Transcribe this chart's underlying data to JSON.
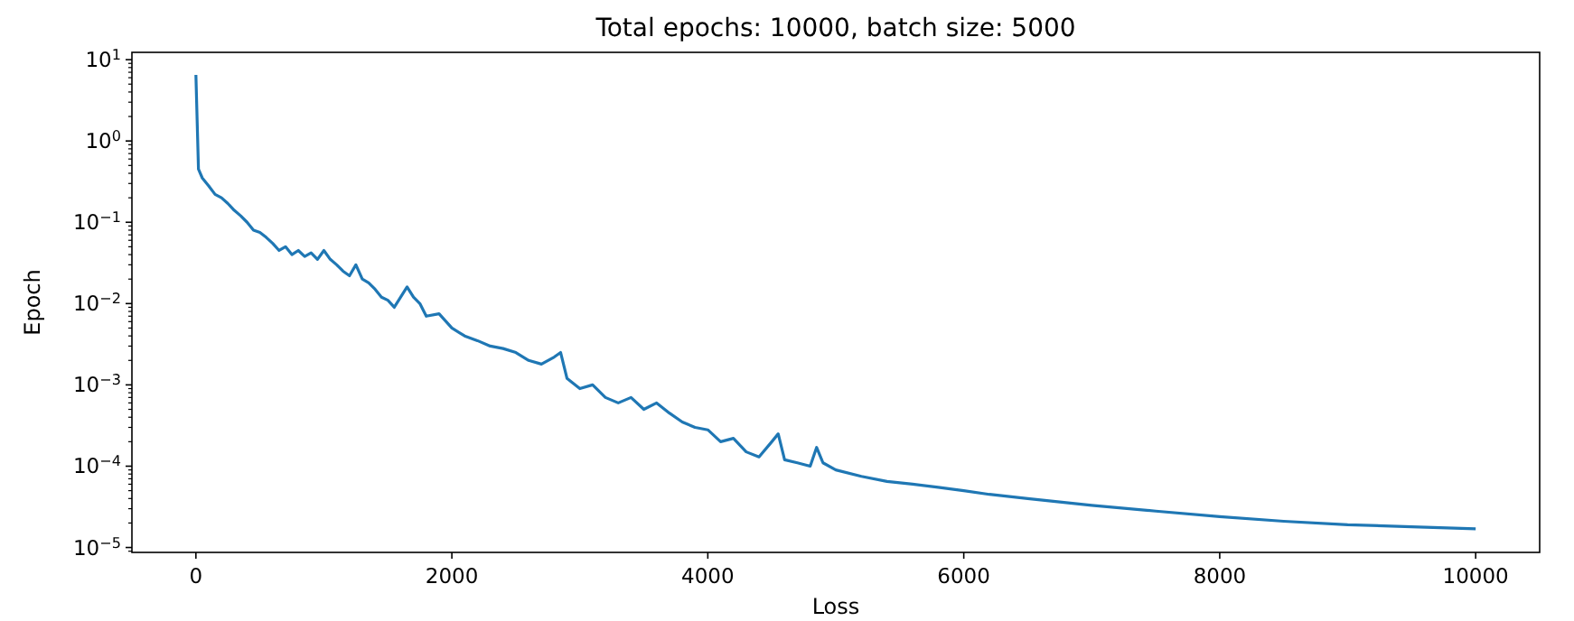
{
  "chart_data": {
    "type": "line",
    "title": "Total epochs: 10000, batch size: 5000",
    "xlabel": "Loss",
    "ylabel": "Epoch",
    "log": "y",
    "grid": false,
    "marker": "none",
    "line_style": "solid",
    "xlim": [
      -500,
      10500
    ],
    "xticks": [
      0,
      2000,
      4000,
      6000,
      8000,
      10000
    ],
    "ylim": [
      8.7e-06,
      12.3
    ],
    "yticks": [
      {
        "value": 1e-05,
        "label": "10$^{−5}$"
      },
      {
        "value": 0.0001,
        "label": "10$^{−4}$"
      },
      {
        "value": 0.001,
        "label": "10$^{−3}$"
      },
      {
        "value": 0.01,
        "label": "10$^{−2}$"
      },
      {
        "value": 0.1,
        "label": "10$^{−1}$"
      },
      {
        "value": 1,
        "label": "10$^{0}$"
      },
      {
        "value": 10,
        "label": "10$^{1}$"
      }
    ],
    "x": [
      0,
      20,
      50,
      100,
      150,
      200,
      250,
      300,
      350,
      400,
      450,
      500,
      550,
      600,
      650,
      700,
      750,
      800,
      850,
      900,
      950,
      1000,
      1050,
      1100,
      1150,
      1200,
      1250,
      1300,
      1350,
      1400,
      1450,
      1500,
      1550,
      1600,
      1650,
      1700,
      1750,
      1800,
      1900,
      2000,
      2100,
      2200,
      2300,
      2400,
      2500,
      2600,
      2700,
      2800,
      2850,
      2900,
      3000,
      3100,
      3200,
      3300,
      3400,
      3500,
      3600,
      3700,
      3800,
      3900,
      4000,
      4100,
      4200,
      4300,
      4400,
      4500,
      4550,
      4600,
      4700,
      4800,
      4850,
      4900,
      5000,
      5200,
      5400,
      5600,
      5800,
      6000,
      6200,
      6500,
      7000,
      7500,
      8000,
      8500,
      9000,
      9500,
      10000
    ],
    "series": [
      {
        "color": "#1f77b4",
        "values": [
          6.5,
          0.45,
          0.35,
          0.28,
          0.22,
          0.2,
          0.17,
          0.14,
          0.12,
          0.1,
          0.08,
          0.075,
          0.065,
          0.055,
          0.045,
          0.05,
          0.04,
          0.045,
          0.038,
          0.042,
          0.035,
          0.045,
          0.035,
          0.03,
          0.025,
          0.022,
          0.03,
          0.02,
          0.018,
          0.015,
          0.012,
          0.011,
          0.009,
          0.012,
          0.016,
          0.012,
          0.01,
          0.007,
          0.0075,
          0.005,
          0.004,
          0.0035,
          0.003,
          0.0028,
          0.0025,
          0.002,
          0.0018,
          0.0022,
          0.0025,
          0.0012,
          0.0009,
          0.001,
          0.0007,
          0.0006,
          0.0007,
          0.0005,
          0.0006,
          0.00045,
          0.00035,
          0.0003,
          0.00028,
          0.0002,
          0.00022,
          0.00015,
          0.00013,
          0.0002,
          0.00025,
          0.00012,
          0.00011,
          0.0001,
          0.00017,
          0.00011,
          9e-05,
          7.5e-05,
          6.5e-05,
          6e-05,
          5.5e-05,
          5e-05,
          4.5e-05,
          4e-05,
          3.3e-05,
          2.8e-05,
          2.4e-05,
          2.1e-05,
          1.9e-05,
          1.8e-05,
          1.7e-05
        ]
      }
    ]
  }
}
